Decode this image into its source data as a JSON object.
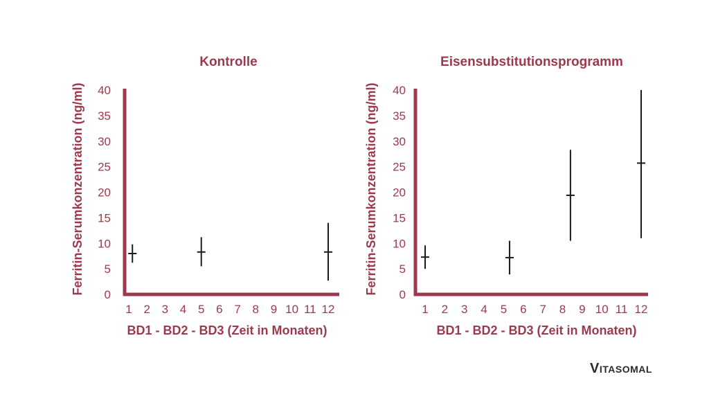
{
  "colors": {
    "accent": "#9b3a4d",
    "errorbar": "#1a1a1a",
    "logo": "#2b2b2b"
  },
  "brand": {
    "logo_text": "Vitasomal"
  },
  "chart_data": [
    {
      "type": "errorbar",
      "title": "Kontrolle",
      "xlabel": "BD1 - BD2 - BD3 (Zeit in Monaten)",
      "ylabel": "Ferritin-Serumkonzentration (ng/ml)",
      "ylim": [
        0,
        40
      ],
      "yticks": [
        0,
        5,
        10,
        15,
        20,
        25,
        30,
        35,
        40
      ],
      "xticks": [
        1,
        2,
        3,
        4,
        5,
        6,
        7,
        8,
        9,
        10,
        11,
        12
      ],
      "grid": false,
      "points": [
        {
          "x": 1.2,
          "mean": 8.0,
          "low": 6.2,
          "high": 9.8
        },
        {
          "x": 5.0,
          "mean": 8.3,
          "low": 5.5,
          "high": 11.2
        },
        {
          "x": 12.0,
          "mean": 8.3,
          "low": 2.7,
          "high": 14.0
        }
      ]
    },
    {
      "type": "errorbar",
      "title": "Eisensubstitutionsprogramm",
      "xlabel": "BD1 - BD2 - BD3 (Zeit in Monaten)",
      "ylabel": "Ferritin-Serumkonzentration (ng/ml)",
      "ylim": [
        0,
        40
      ],
      "yticks": [
        0,
        5,
        10,
        15,
        20,
        25,
        30,
        35,
        40
      ],
      "xticks": [
        1,
        2,
        3,
        4,
        5,
        6,
        7,
        8,
        9,
        10,
        11,
        12
      ],
      "xticks_note": "",
      "xtick_labels": [
        "1",
        "2",
        "3",
        "4",
        "5",
        "6",
        "7",
        "8",
        "9",
        "10",
        "11",
        "12"
      ],
      "grid": false,
      "points": [
        {
          "x": 1.0,
          "mean": 7.3,
          "low": 5.0,
          "high": 9.6
        },
        {
          "x": 5.3,
          "mean": 7.2,
          "low": 3.9,
          "high": 10.5
        },
        {
          "x": 8.4,
          "mean": 19.4,
          "low": 10.5,
          "high": 28.3
        },
        {
          "x": 12.0,
          "mean": 25.7,
          "low": 11.0,
          "high": 40.0
        }
      ]
    }
  ]
}
